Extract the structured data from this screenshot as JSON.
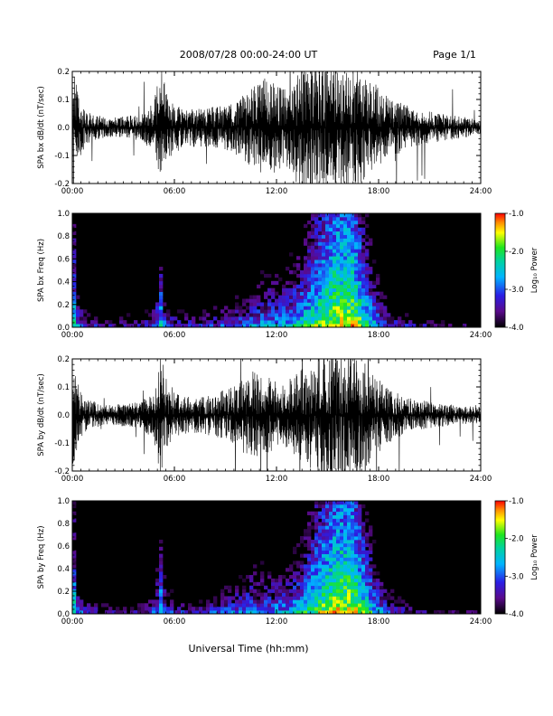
{
  "header": {
    "title": "2008/07/28  00:00-24:00 UT",
    "page": "Page 1/1"
  },
  "footer": {
    "xlabel": "Universal Time (hh:mm)"
  },
  "chart_data": [
    {
      "type": "line",
      "ylabel": "SPA bx dB/dt (nT/sec)",
      "xlim": [
        0,
        24
      ],
      "ylim": [
        -0.2,
        0.2
      ],
      "x_ticks": [
        "00:00",
        "06:00",
        "12:00",
        "18:00",
        "24:00"
      ],
      "y_ticks": [
        "-0.2",
        "-0.1",
        "0.0",
        "0.1",
        "0.2"
      ],
      "amplitude_envelope": {
        "hours": [
          0,
          0.3,
          0.8,
          2,
          4,
          4.8,
          5.2,
          5.6,
          6.5,
          8,
          9.5,
          10.5,
          11.5,
          12.5,
          13.5,
          14.5,
          15.5,
          16.5,
          17.5,
          18.5,
          20,
          22,
          24
        ],
        "amplitude": [
          0.2,
          0.12,
          0.05,
          0.03,
          0.04,
          0.08,
          0.2,
          0.1,
          0.06,
          0.06,
          0.08,
          0.12,
          0.16,
          0.12,
          0.2,
          0.2,
          0.2,
          0.2,
          0.15,
          0.1,
          0.06,
          0.04,
          0.025
        ]
      }
    },
    {
      "type": "heatmap",
      "ylabel": "SPA bx Freq (Hz)",
      "xlim": [
        0,
        24
      ],
      "ylim": [
        0,
        1.0
      ],
      "x_ticks": [
        "00:00",
        "06:00",
        "12:00",
        "18:00",
        "24:00"
      ],
      "y_ticks": [
        "0.0",
        "0.2",
        "0.4",
        "0.6",
        "0.8",
        "1.0"
      ],
      "colorbar": {
        "label": "Log₁₀ Power",
        "range": [
          -4.0,
          -1.0
        ],
        "ticks": [
          "-1.0",
          "-2.0",
          "-3.0",
          "-4.0"
        ]
      },
      "activity_profile": {
        "hours": [
          0,
          0.3,
          0.8,
          2,
          4,
          4.8,
          5.2,
          5.6,
          6.5,
          8,
          9.5,
          10.5,
          11.5,
          12.5,
          13.5,
          14.5,
          15.5,
          16.5,
          17.5,
          18.5,
          20,
          22,
          24
        ],
        "log10_power_near_0hz": [
          -1.5,
          -2.5,
          -3.0,
          -3.2,
          -3.1,
          -2.8,
          -2.0,
          -2.8,
          -3.0,
          -2.9,
          -2.7,
          -2.5,
          -2.3,
          -2.3,
          -2.0,
          -1.6,
          -1.3,
          -1.3,
          -2.0,
          -2.7,
          -3.2,
          -3.4,
          -3.6
        ]
      }
    },
    {
      "type": "line",
      "ylabel": "SPA by dB/dt (nT/sec)",
      "xlim": [
        0,
        24
      ],
      "ylim": [
        -0.2,
        0.2
      ],
      "x_ticks": [
        "00:00",
        "06:00",
        "12:00",
        "18:00",
        "24:00"
      ],
      "y_ticks": [
        "-0.2",
        "-0.1",
        "0.0",
        "0.1",
        "0.2"
      ],
      "amplitude_envelope": {
        "hours": [
          0,
          0.3,
          0.8,
          2,
          4,
          4.8,
          5.2,
          5.6,
          6.5,
          8,
          9.5,
          10.5,
          11.5,
          12.5,
          13.5,
          14.5,
          15.5,
          16.5,
          17.5,
          18.5,
          20,
          22,
          24
        ],
        "amplitude": [
          0.2,
          0.1,
          0.05,
          0.03,
          0.04,
          0.08,
          0.2,
          0.1,
          0.06,
          0.06,
          0.09,
          0.14,
          0.12,
          0.1,
          0.15,
          0.2,
          0.2,
          0.2,
          0.15,
          0.09,
          0.05,
          0.035,
          0.025
        ]
      }
    },
    {
      "type": "heatmap",
      "ylabel": "SPA by Freq (Hz)",
      "xlim": [
        0,
        24
      ],
      "ylim": [
        0,
        1.0
      ],
      "x_ticks": [
        "00:00",
        "06:00",
        "12:00",
        "18:00",
        "24:00"
      ],
      "y_ticks": [
        "0.0",
        "0.2",
        "0.4",
        "0.6",
        "0.8",
        "1.0"
      ],
      "colorbar": {
        "label": "Log₁₀ Power",
        "range": [
          -4.0,
          -1.0
        ],
        "ticks": [
          "-1.0",
          "-2.0",
          "-3.0",
          "-4.0"
        ]
      },
      "activity_profile": {
        "hours": [
          0,
          0.3,
          0.8,
          2,
          4,
          4.8,
          5.2,
          5.6,
          6.5,
          8,
          9.5,
          10.5,
          11.5,
          12.5,
          13.5,
          14.5,
          15.5,
          16.5,
          17.5,
          18.5,
          20,
          22,
          24
        ],
        "log10_power_near_0hz": [
          -1.5,
          -2.5,
          -3.0,
          -3.2,
          -3.1,
          -2.8,
          -2.0,
          -2.8,
          -3.0,
          -2.9,
          -2.6,
          -2.4,
          -2.4,
          -2.4,
          -2.1,
          -1.6,
          -1.3,
          -1.3,
          -2.0,
          -2.7,
          -3.2,
          -3.4,
          -3.6
        ]
      }
    }
  ]
}
